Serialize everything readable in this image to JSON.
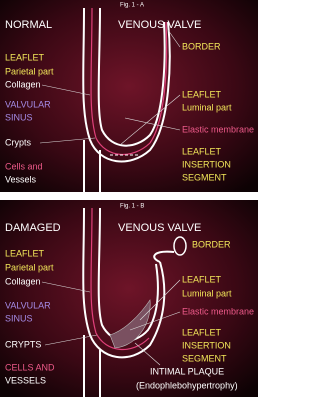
{
  "panels": [
    {
      "figure": "Fig. 1 - A",
      "state": "NORMAL",
      "heading": "VENOUS   VALVE",
      "labels": {
        "border": "BORDER",
        "leaflet": "LEAFLET",
        "parietal": "Parietal part",
        "collagen": "Collagen",
        "sinus_1": "VALVULAR",
        "sinus_2": "SINUS",
        "leaflet_2": "LEAFLET",
        "luminal": "Luminal part",
        "elastic": "Elastic membrane",
        "crypts": "Crypts",
        "leaflet_3": "LEAFLET",
        "insertion": "INSERTION",
        "segment": "SEGMENT",
        "cells": "Cells and",
        "vessels": "Vessels"
      }
    },
    {
      "figure": "Fig. 1 - B",
      "state": "DAMAGED",
      "heading": "VENOUS   VALVE",
      "labels": {
        "border": "BORDER",
        "leaflet": "LEAFLET",
        "parietal": "Parietal part",
        "collagen": "Collagen",
        "sinus_1": "VALVULAR",
        "sinus_2": "SINUS",
        "leaflet_2": "LEAFLET",
        "luminal": "Luminal part",
        "elastic": "Elastic membrane",
        "crypts": "CRYPTS",
        "leaflet_3": "LEAFLET",
        "insertion": "INSERTION",
        "segment": "SEGMENT",
        "cells": "CELLS AND",
        "vessels": "VESSELS",
        "plaque": "INTIMAL PLAQUE",
        "plaque_note": "(Endophlebohypertrophy)"
      }
    }
  ]
}
